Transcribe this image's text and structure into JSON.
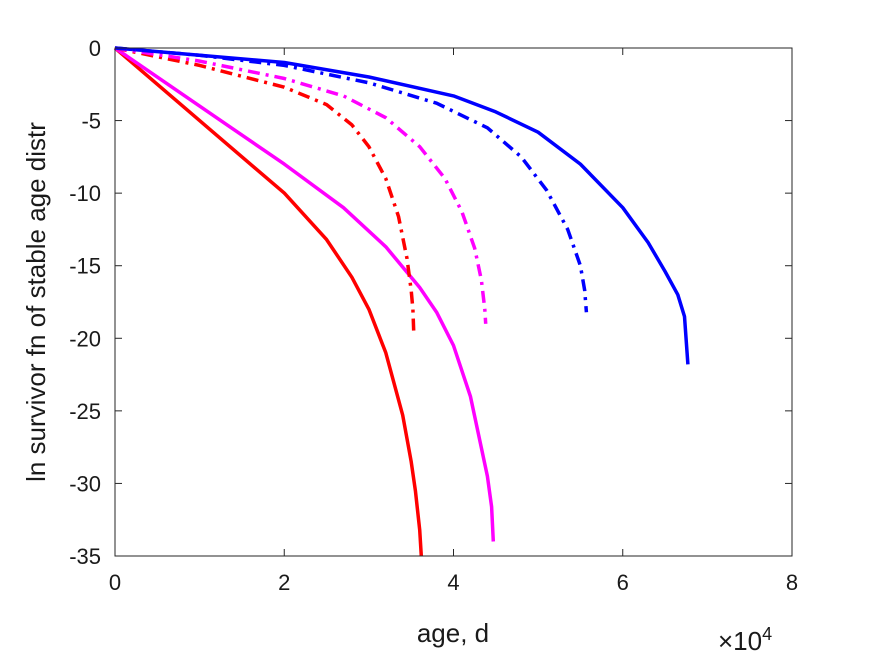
{
  "chart_data": {
    "type": "line",
    "xlabel": "age, d",
    "ylabel": "ln survivor fn of stable age distr",
    "x_multiplier": {
      "base": "×10",
      "exponent": "4"
    },
    "xlim": [
      0,
      80000
    ],
    "ylim": [
      -35,
      0
    ],
    "xticks": [
      0,
      20000,
      40000,
      60000,
      80000
    ],
    "xtick_labels": [
      "0",
      "2",
      "4",
      "6",
      "8"
    ],
    "yticks": [
      0,
      -5,
      -10,
      -15,
      -20,
      -25,
      -30,
      -35
    ],
    "ytick_labels": [
      "0",
      "-5",
      "-10",
      "-15",
      "-20",
      "-25",
      "-30",
      "-35"
    ],
    "grid": false,
    "legend": "none",
    "series": [
      {
        "color": "#ff0000",
        "style": "solid",
        "x": [
          0,
          10000,
          20000,
          25000,
          28000,
          30000,
          32000,
          34000,
          35000,
          35500,
          36000,
          36200
        ],
        "y": [
          0,
          -5,
          -10,
          -13.2,
          -15.8,
          -18.0,
          -21.0,
          -25.3,
          -28.5,
          -30.5,
          -33.2,
          -35
        ]
      },
      {
        "color": "#ff00ff",
        "style": "solid",
        "x": [
          0,
          10000,
          20000,
          27000,
          32000,
          36000,
          38000,
          40000,
          42000,
          44000,
          44500,
          44700
        ],
        "y": [
          0,
          -4,
          -8,
          -11.0,
          -13.7,
          -16.5,
          -18.2,
          -20.5,
          -24.0,
          -29.5,
          -31.6,
          -34
        ]
      },
      {
        "color": "#0000ff",
        "style": "solid",
        "x": [
          0,
          10000,
          20000,
          30000,
          40000,
          45000,
          50000,
          55000,
          60000,
          63000,
          65000,
          66500,
          67300,
          67700
        ],
        "y": [
          0,
          -0.5,
          -1.0,
          -2.0,
          -3.3,
          -4.4,
          -5.8,
          -8.0,
          -11.0,
          -13.4,
          -15.4,
          -17.0,
          -18.5,
          -21.8
        ]
      },
      {
        "color": "#ff0000",
        "style": "dashdot",
        "x": [
          0,
          10000,
          20000,
          25000,
          28000,
          30000,
          32000,
          33500,
          34500,
          35000,
          35200,
          35300
        ],
        "y": [
          0,
          -1.2,
          -2.7,
          -3.9,
          -5.3,
          -6.8,
          -9.0,
          -11.6,
          -14.5,
          -16.7,
          -18.0,
          -19.5
        ]
      },
      {
        "color": "#ff00ff",
        "style": "dashdot",
        "x": [
          0,
          10000,
          20000,
          27000,
          32000,
          36000,
          39000,
          41000,
          42500,
          43300,
          43700,
          43800
        ],
        "y": [
          0,
          -0.9,
          -2.1,
          -3.3,
          -4.8,
          -6.8,
          -9.0,
          -11.3,
          -13.8,
          -16.0,
          -18.0,
          -19.0
        ]
      },
      {
        "color": "#0000ff",
        "style": "dashdot",
        "x": [
          0,
          10000,
          20000,
          30000,
          38000,
          44000,
          48000,
          51000,
          53500,
          55000,
          55500,
          55700
        ],
        "y": [
          0,
          -0.5,
          -1.2,
          -2.4,
          -3.8,
          -5.5,
          -7.5,
          -9.8,
          -12.5,
          -15.0,
          -16.7,
          -18.2
        ]
      }
    ]
  }
}
